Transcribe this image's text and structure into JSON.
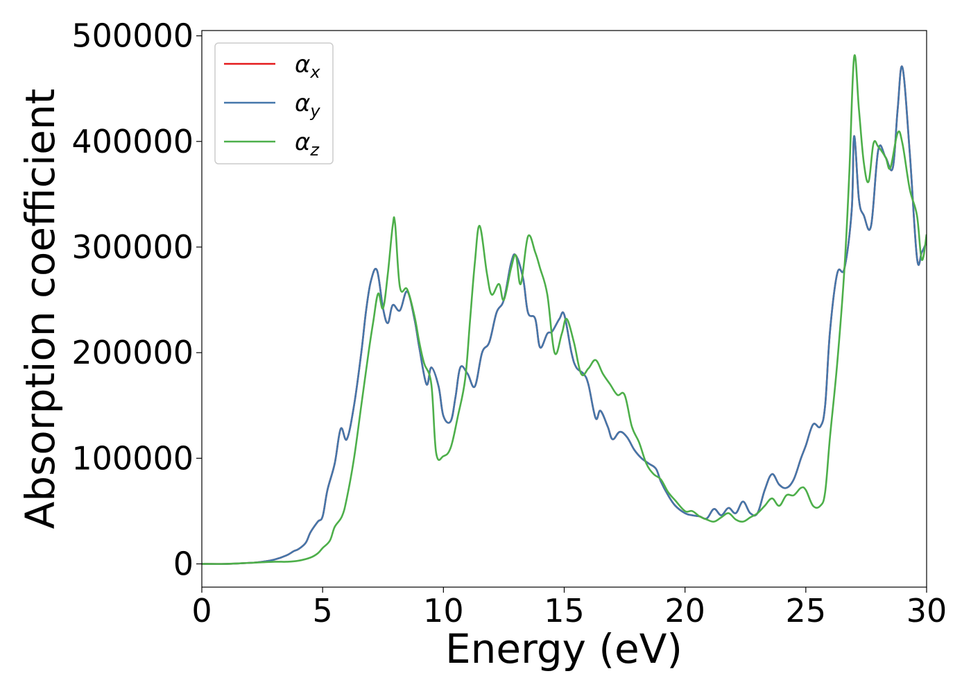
{
  "chart_data": {
    "type": "line",
    "title": "",
    "xlabel": "Energy (eV)",
    "ylabel": "Absorption coefficient",
    "xlim": [
      0,
      30
    ],
    "ylim": [
      -22000,
      505000
    ],
    "x_ticks": [
      0,
      5,
      10,
      15,
      20,
      25,
      30
    ],
    "y_ticks": [
      0,
      100000,
      200000,
      300000,
      400000,
      500000
    ],
    "x_tick_labels": [
      "0",
      "5",
      "10",
      "15",
      "20",
      "25",
      "30"
    ],
    "y_tick_labels": [
      "0",
      "100000",
      "200000",
      "300000",
      "400000",
      "500000"
    ],
    "grid": false,
    "legend_position": "top-left",
    "series": [
      {
        "name": "αx",
        "symbol": "α",
        "subscript": "x",
        "color": "#e41a1c",
        "x": [
          0,
          1,
          2,
          2.5,
          3,
          3.5,
          3.8,
          4.0,
          4.3,
          4.5,
          4.8,
          5.0,
          5.2,
          5.5,
          5.75,
          6.0,
          6.3,
          6.6,
          6.8,
          7.0,
          7.25,
          7.5,
          7.7,
          7.9,
          8.2,
          8.5,
          8.8,
          9.0,
          9.3,
          9.5,
          9.8,
          10.0,
          10.3,
          10.5,
          10.7,
          11.0,
          11.3,
          11.6,
          11.9,
          12.2,
          12.5,
          12.8,
          13.0,
          13.3,
          13.5,
          13.8,
          14.0,
          14.3,
          14.5,
          14.8,
          15.0,
          15.3,
          15.5,
          15.8,
          16.0,
          16.3,
          16.5,
          16.8,
          17.0,
          17.3,
          17.6,
          17.9,
          18.2,
          18.5,
          18.8,
          19.0,
          19.3,
          19.6,
          20.0,
          20.3,
          20.6,
          20.9,
          21.2,
          21.5,
          21.8,
          22.1,
          22.4,
          22.7,
          23.0,
          23.3,
          23.6,
          23.9,
          24.2,
          24.5,
          24.8,
          25.0,
          25.3,
          25.6,
          25.8,
          26.0,
          26.3,
          26.6,
          26.9,
          27.0,
          27.2,
          27.4,
          27.7,
          28.0,
          28.3,
          28.6,
          28.8,
          29.0,
          29.3,
          29.6,
          29.8,
          30.0
        ],
        "y": [
          0,
          0,
          1000,
          2000,
          4000,
          8000,
          12000,
          14000,
          20000,
          30000,
          40000,
          45000,
          70000,
          95000,
          128000,
          118000,
          150000,
          200000,
          240000,
          268000,
          278000,
          242000,
          228000,
          245000,
          240000,
          258000,
          232000,
          205000,
          170000,
          186000,
          168000,
          140000,
          135000,
          158000,
          186000,
          180000,
          168000,
          200000,
          210000,
          238000,
          250000,
          285000,
          292000,
          270000,
          238000,
          232000,
          205000,
          218000,
          220000,
          232000,
          236000,
          200000,
          186000,
          180000,
          170000,
          138000,
          145000,
          130000,
          118000,
          125000,
          120000,
          108000,
          100000,
          95000,
          90000,
          78000,
          65000,
          55000,
          48000,
          46000,
          45000,
          43000,
          52000,
          46000,
          53000,
          48000,
          59000,
          48000,
          48000,
          70000,
          85000,
          75000,
          72000,
          80000,
          100000,
          112000,
          132000,
          130000,
          150000,
          220000,
          275000,
          280000,
          335000,
          405000,
          345000,
          330000,
          320000,
          392000,
          385000,
          375000,
          430000,
          470000,
          390000,
          290000,
          295000,
          305000
        ]
      },
      {
        "name": "αy",
        "symbol": "α",
        "subscript": "y",
        "color": "#4477aa",
        "x": [
          0,
          1,
          2,
          2.5,
          3,
          3.5,
          3.8,
          4.0,
          4.3,
          4.5,
          4.8,
          5.0,
          5.2,
          5.5,
          5.75,
          6.0,
          6.3,
          6.6,
          6.8,
          7.0,
          7.25,
          7.5,
          7.7,
          7.9,
          8.2,
          8.5,
          8.8,
          9.0,
          9.3,
          9.5,
          9.8,
          10.0,
          10.3,
          10.5,
          10.7,
          11.0,
          11.3,
          11.6,
          11.9,
          12.2,
          12.5,
          12.8,
          13.0,
          13.3,
          13.5,
          13.8,
          14.0,
          14.3,
          14.5,
          14.8,
          15.0,
          15.3,
          15.5,
          15.8,
          16.0,
          16.3,
          16.5,
          16.8,
          17.0,
          17.3,
          17.6,
          17.9,
          18.2,
          18.5,
          18.8,
          19.0,
          19.3,
          19.6,
          20.0,
          20.3,
          20.6,
          20.9,
          21.2,
          21.5,
          21.8,
          22.1,
          22.4,
          22.7,
          23.0,
          23.3,
          23.6,
          23.9,
          24.2,
          24.5,
          24.8,
          25.0,
          25.3,
          25.6,
          25.8,
          26.0,
          26.3,
          26.6,
          26.9,
          27.0,
          27.2,
          27.4,
          27.7,
          28.0,
          28.3,
          28.6,
          28.8,
          29.0,
          29.3,
          29.6,
          29.8,
          30.0
        ],
        "y": [
          0,
          0,
          1000,
          2000,
          4000,
          8000,
          12000,
          14000,
          20000,
          30000,
          40000,
          45000,
          70000,
          95000,
          128000,
          118000,
          150000,
          200000,
          240000,
          268000,
          278000,
          242000,
          228000,
          245000,
          240000,
          258000,
          232000,
          205000,
          170000,
          186000,
          168000,
          140000,
          135000,
          158000,
          186000,
          180000,
          168000,
          200000,
          210000,
          238000,
          250000,
          285000,
          292000,
          270000,
          238000,
          232000,
          205000,
          218000,
          220000,
          232000,
          236000,
          200000,
          186000,
          180000,
          170000,
          138000,
          145000,
          130000,
          118000,
          125000,
          120000,
          108000,
          100000,
          95000,
          90000,
          78000,
          65000,
          55000,
          48000,
          46000,
          45000,
          43000,
          52000,
          46000,
          53000,
          48000,
          59000,
          48000,
          48000,
          70000,
          85000,
          75000,
          72000,
          80000,
          100000,
          112000,
          132000,
          130000,
          150000,
          220000,
          275000,
          280000,
          335000,
          405000,
          345000,
          330000,
          320000,
          392000,
          385000,
          375000,
          430000,
          470000,
          390000,
          290000,
          295000,
          305000
        ]
      },
      {
        "name": "αz",
        "symbol": "α",
        "subscript": "z",
        "color": "#4daf4a",
        "x": [
          0,
          1,
          2,
          3,
          3.5,
          4.0,
          4.5,
          4.8,
          5.0,
          5.3,
          5.5,
          5.8,
          6.0,
          6.3,
          6.6,
          6.9,
          7.1,
          7.3,
          7.5,
          7.7,
          7.9,
          8.0,
          8.2,
          8.5,
          8.8,
          9.0,
          9.2,
          9.5,
          9.7,
          10.0,
          10.3,
          10.6,
          10.9,
          11.1,
          11.3,
          11.5,
          11.8,
          12.0,
          12.3,
          12.5,
          12.8,
          13.0,
          13.2,
          13.5,
          13.8,
          14.0,
          14.3,
          14.6,
          14.9,
          15.1,
          15.4,
          15.7,
          16.0,
          16.3,
          16.6,
          16.9,
          17.2,
          17.5,
          17.8,
          18.1,
          18.4,
          18.7,
          19.0,
          19.3,
          19.6,
          20.0,
          20.3,
          20.6,
          20.9,
          21.2,
          21.5,
          21.8,
          22.1,
          22.4,
          22.7,
          23.0,
          23.3,
          23.6,
          23.9,
          24.2,
          24.5,
          24.8,
          25.0,
          25.3,
          25.6,
          25.8,
          26.0,
          26.3,
          26.6,
          26.8,
          27.0,
          27.2,
          27.4,
          27.6,
          27.8,
          28.0,
          28.3,
          28.5,
          28.8,
          29.0,
          29.3,
          29.6,
          29.8,
          30.0
        ],
        "y": [
          0,
          0,
          1000,
          2000,
          2000,
          3000,
          6000,
          10000,
          15000,
          22000,
          35000,
          45000,
          62000,
          100000,
          150000,
          200000,
          230000,
          256000,
          242000,
          275000,
          320000,
          322000,
          262000,
          260000,
          235000,
          210000,
          190000,
          170000,
          105000,
          102000,
          110000,
          140000,
          175000,
          230000,
          285000,
          320000,
          275000,
          255000,
          265000,
          250000,
          280000,
          292000,
          265000,
          310000,
          295000,
          280000,
          255000,
          200000,
          218000,
          232000,
          210000,
          180000,
          185000,
          193000,
          180000,
          170000,
          160000,
          160000,
          130000,
          115000,
          95000,
          85000,
          80000,
          68000,
          60000,
          50000,
          50000,
          45000,
          42000,
          40000,
          44000,
          48000,
          42000,
          40000,
          44000,
          48000,
          55000,
          62000,
          55000,
          65000,
          65000,
          72000,
          70000,
          55000,
          55000,
          68000,
          120000,
          190000,
          280000,
          370000,
          480000,
          430000,
          380000,
          362000,
          398000,
          395000,
          385000,
          375000,
          408000,
          398000,
          355000,
          330000,
          288000,
          312000
        ]
      }
    ]
  }
}
